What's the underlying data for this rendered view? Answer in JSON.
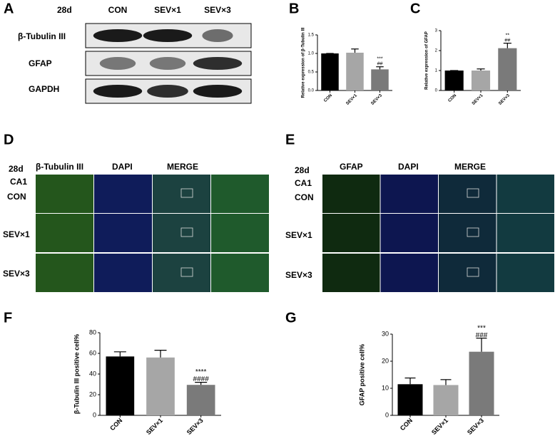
{
  "panel_a": {
    "label": "A",
    "timepoint": "28d",
    "groups": [
      "CON",
      "SEV×1",
      "SEV×3"
    ],
    "rows": [
      "β-Tubulin III",
      "GFAP",
      "GAPDH"
    ]
  },
  "panel_d": {
    "label": "D",
    "timepoint": "28d",
    "region": "CA1",
    "columns": [
      "β-Tubulin III",
      "DAPI",
      "MERGE"
    ],
    "rows": [
      "CON",
      "SEV×1",
      "SEV×3"
    ]
  },
  "panel_e": {
    "label": "E",
    "timepoint": "28d",
    "region": "CA1",
    "columns": [
      "GFAP",
      "DAPI",
      "MERGE"
    ],
    "rows": [
      "CON",
      "SEV×1",
      "SEV×3"
    ]
  },
  "chart_data": [
    {
      "type": "bar",
      "panel": "B",
      "ylabel": "Relative expression of β-Tubulin III",
      "categories": [
        "CON",
        "SEV×1",
        "SEV×3"
      ],
      "values": [
        1.0,
        1.02,
        0.57
      ],
      "errors": [
        0,
        0.1,
        0.07
      ],
      "colors": [
        "#000000",
        "#a6a6a6",
        "#7a7a7a"
      ],
      "ylim": [
        0,
        1.5
      ],
      "yticks": [
        {
          "value": 0,
          "label": "0.0"
        },
        {
          "value": 0.5,
          "label": "0.5"
        },
        {
          "value": 1,
          "label": "1.0"
        },
        {
          "value": 1.5,
          "label": "1.5"
        }
      ],
      "annotations": [
        "***",
        "##"
      ]
    },
    {
      "type": "bar",
      "panel": "C",
      "ylabel": "Relative expression of  GFAP",
      "categories": [
        "CON",
        "SEV×1",
        "SEV×3"
      ],
      "values": [
        1.0,
        1.0,
        2.12
      ],
      "errors": [
        0,
        0.08,
        0.25
      ],
      "colors": [
        "#000000",
        "#a6a6a6",
        "#7a7a7a"
      ],
      "ylim": [
        0,
        3
      ],
      "yticks": [
        0,
        1,
        2,
        3
      ],
      "annotations": [
        "**",
        "##"
      ]
    },
    {
      "type": "bar",
      "panel": "F",
      "ylabel": "β-Tubulin III positive cell%",
      "categories": [
        "CON",
        "SEV×1",
        "SEV×3"
      ],
      "values": [
        57,
        56,
        29.5
      ],
      "errors": [
        4.5,
        7,
        2.5
      ],
      "colors": [
        "#000000",
        "#a6a6a6",
        "#7a7a7a"
      ],
      "ylim": [
        0,
        80
      ],
      "yticks": [
        0,
        20,
        40,
        60,
        80
      ],
      "annotations": [
        "****",
        "####"
      ]
    },
    {
      "type": "bar",
      "panel": "G",
      "ylabel": "GFAP positive cell%",
      "categories": [
        "CON",
        "SEV×1",
        "SEV×3"
      ],
      "values": [
        11.5,
        11.2,
        23.5
      ],
      "errors": [
        2.3,
        2,
        5
      ],
      "colors": [
        "#000000",
        "#a6a6a6",
        "#7a7a7a"
      ],
      "ylim": [
        0,
        30
      ],
      "yticks": [
        0,
        10,
        20,
        30
      ],
      "annotations": [
        "***",
        "###"
      ]
    }
  ]
}
